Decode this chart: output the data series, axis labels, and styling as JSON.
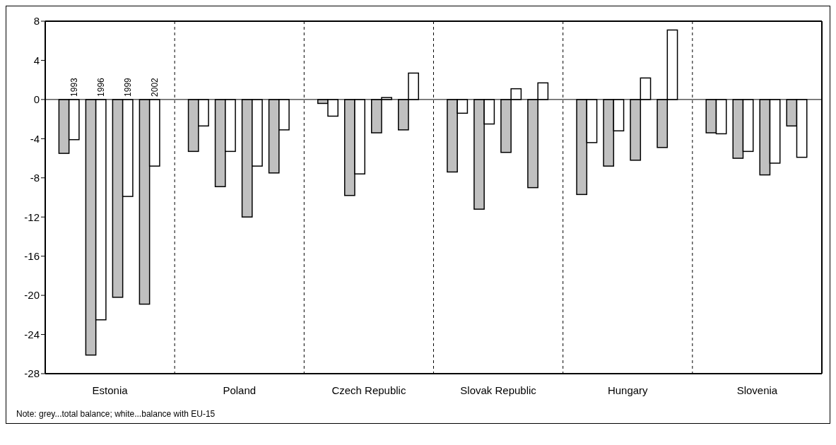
{
  "chart_data": {
    "type": "bar",
    "categories": [
      "Estonia",
      "Poland",
      "Czech Republic",
      "Slovak Republic",
      "Hungary",
      "Slovenia"
    ],
    "series": [
      {
        "color": "#c0c0c0",
        "values": [
          -5.5,
          -5.3,
          -0.4,
          -7.4,
          -9.7,
          -3.4
        ]
      },
      {
        "name": "1993",
        "color": "#ffffff",
        "values": [
          -4.1,
          -2.7,
          -1.7,
          -1.4,
          -4.4,
          -3.5
        ]
      },
      {
        "color": "#c0c0c0",
        "values": [
          -26.1,
          -8.9,
          -9.8,
          -11.2,
          -6.8,
          -6.0
        ]
      },
      {
        "name": "1996",
        "color": "#ffffff",
        "values": [
          -22.5,
          -5.3,
          -7.6,
          -2.5,
          -3.2,
          -5.3
        ]
      },
      {
        "color": "#c0c0c0",
        "values": [
          -20.2,
          -12.0,
          -3.4,
          -5.4,
          -6.2,
          -7.7
        ]
      },
      {
        "name": "1999",
        "color": "#ffffff",
        "values": [
          -9.9,
          -6.8,
          0.2,
          1.1,
          2.2,
          -6.5
        ]
      },
      {
        "color": "#c0c0c0",
        "values": [
          -20.9,
          -7.5,
          -3.1,
          -9.0,
          -4.9,
          -2.7
        ]
      },
      {
        "name": "2002",
        "color": "#ffffff",
        "values": [
          -6.8,
          -3.1,
          2.7,
          1.7,
          7.1,
          -5.9
        ]
      }
    ],
    "ylim": [
      -28,
      8
    ],
    "yticks": [
      -28,
      -24,
      -20,
      -16,
      -12,
      -8,
      -4,
      0,
      4,
      8
    ],
    "ref_lines": [
      {
        "axis": "y",
        "value": 0
      }
    ],
    "grid": "x",
    "line_style": "dashed",
    "annotations": [
      "Note: grey...total balance; white...balance with EU-15"
    ]
  }
}
